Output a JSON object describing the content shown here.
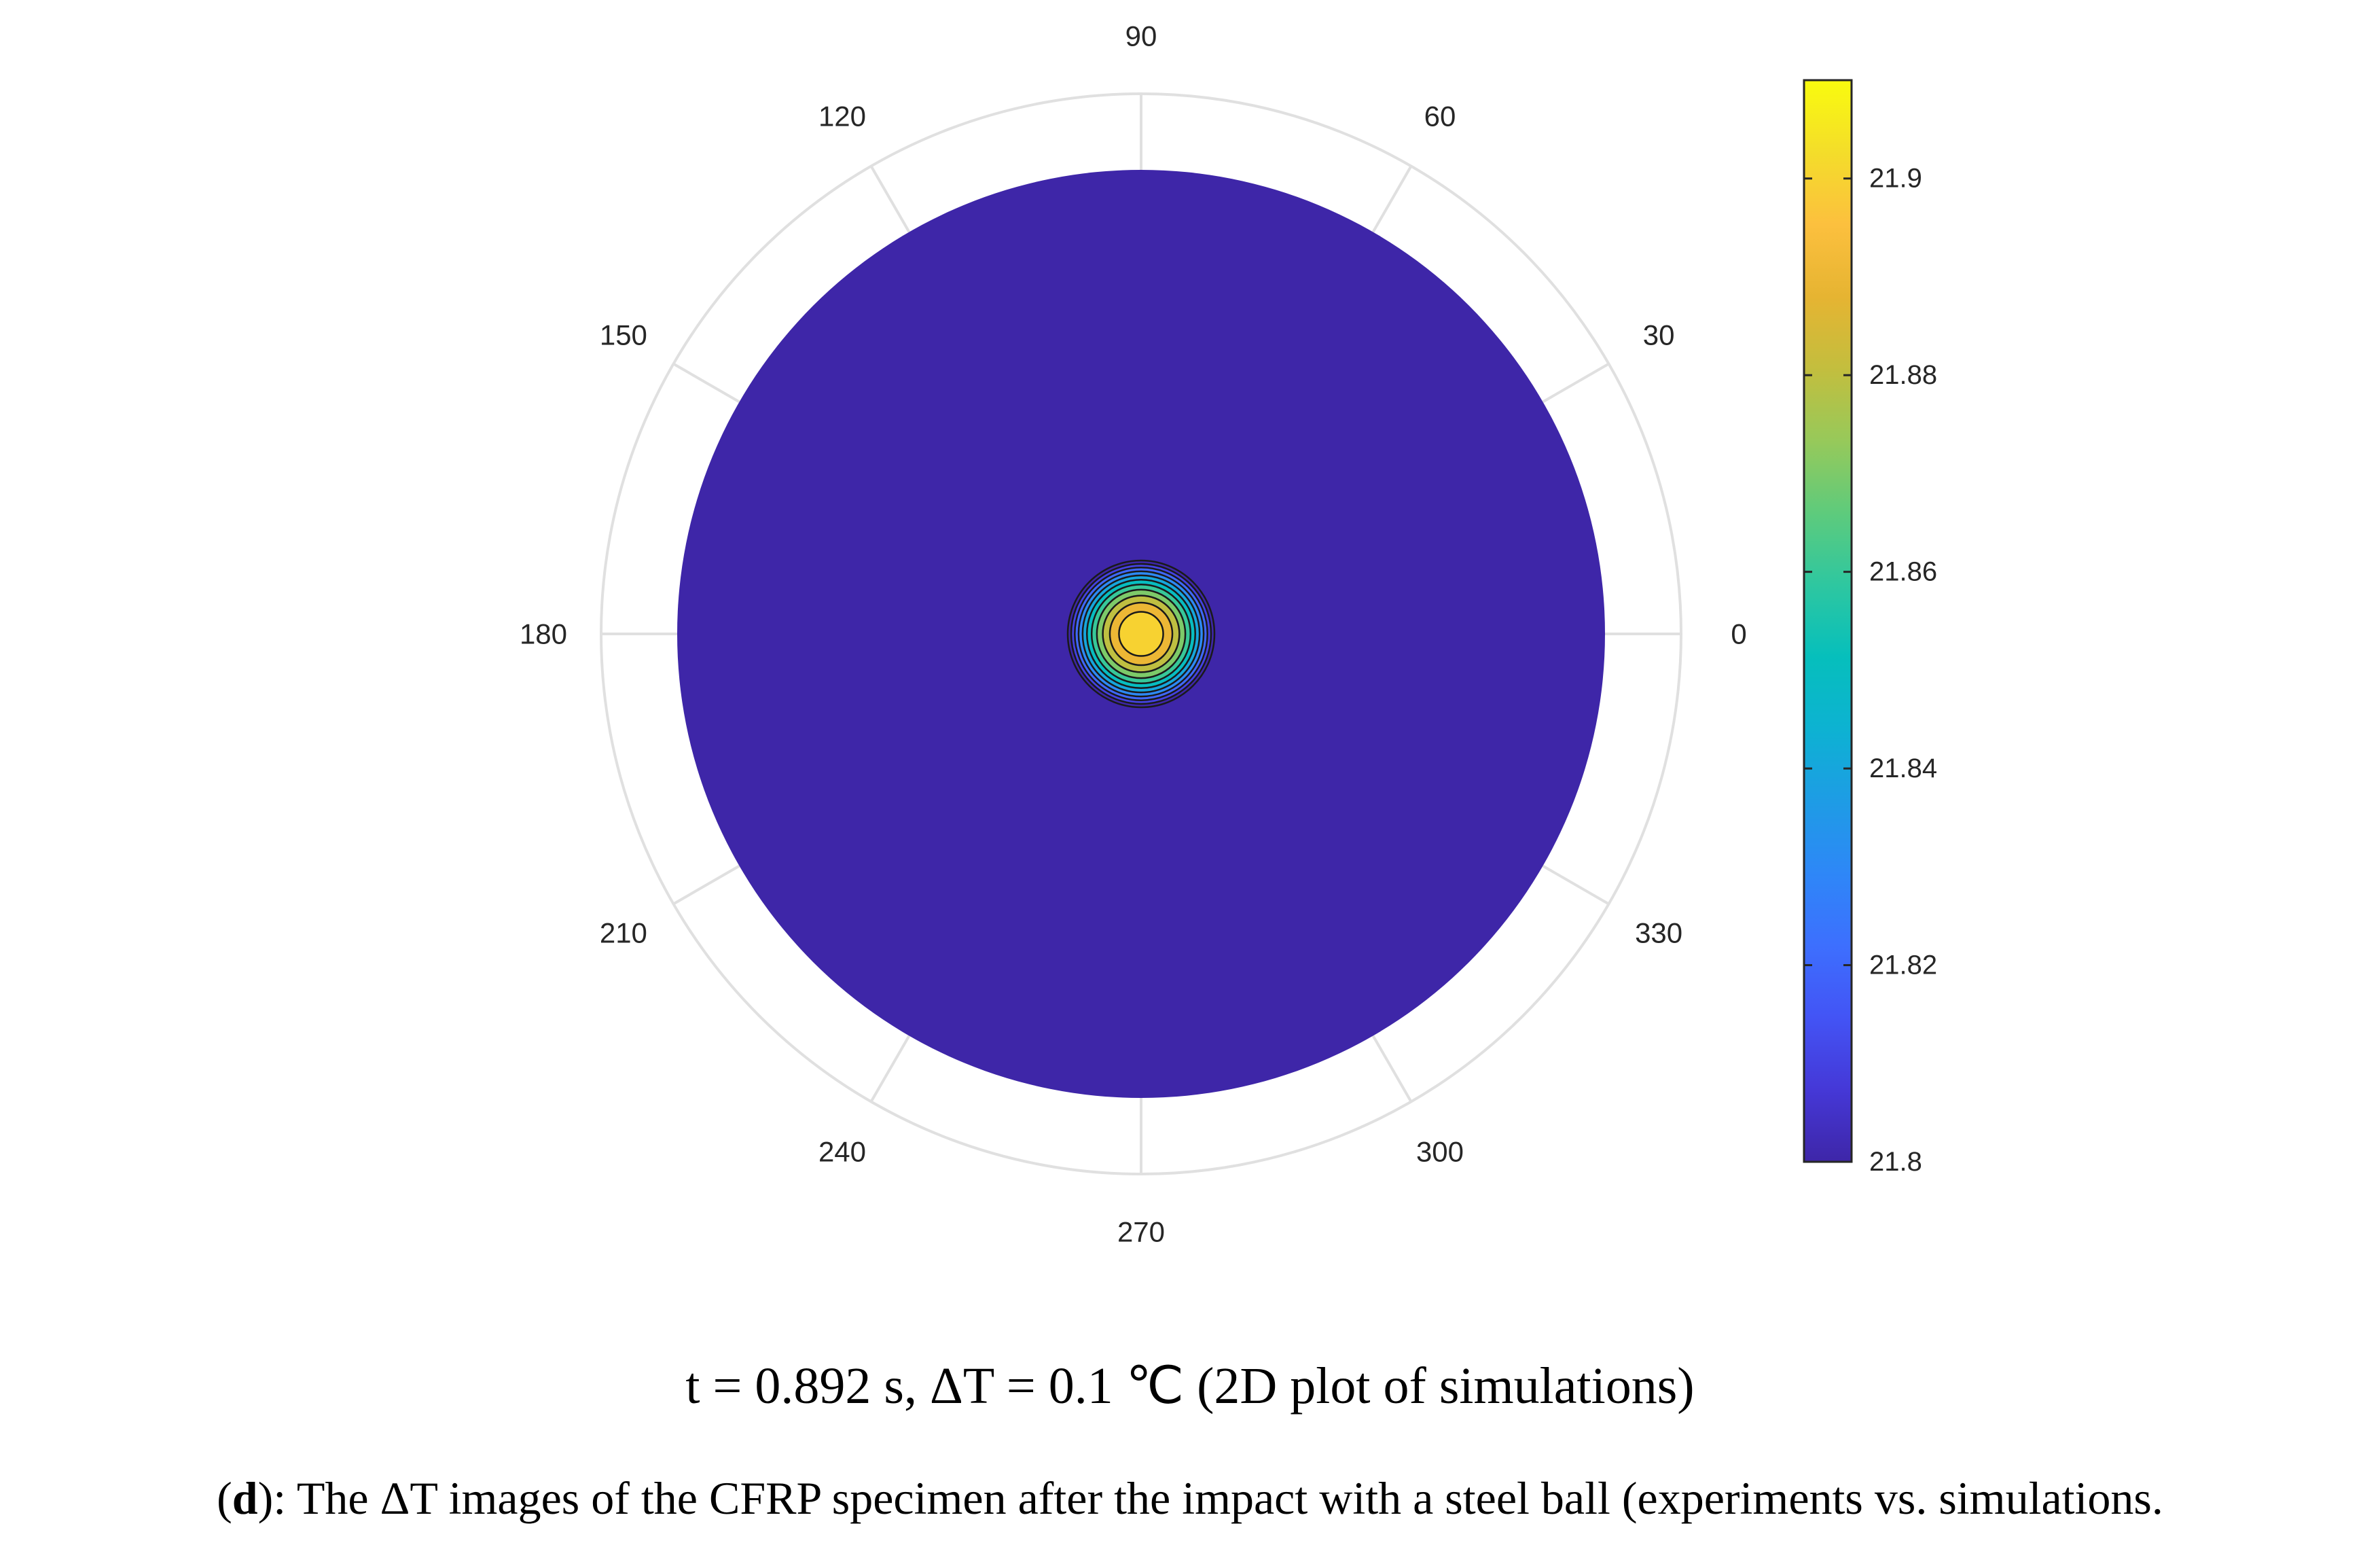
{
  "chart_data": {
    "type": "polar-contour",
    "angle_ticks": [
      "0",
      "30",
      "60",
      "90",
      "120",
      "150",
      "180",
      "210",
      "240",
      "270",
      "300",
      "330"
    ],
    "colorbar": {
      "min": 21.8,
      "max": 21.91,
      "ticks": [
        21.8,
        21.82,
        21.84,
        21.86,
        21.88,
        21.9
      ],
      "tick_labels": [
        "21.8",
        "21.82",
        "21.84",
        "21.86",
        "21.88",
        "21.9"
      ],
      "colormap": [
        "#3e26a8",
        "#4538d7",
        "#4354f5",
        "#3d6ffe",
        "#2e87f7",
        "#1e9ce5",
        "#0db2d2",
        "#06bfbc",
        "#2ec7a0",
        "#5ecb7c",
        "#97c95a",
        "#c3be3e",
        "#e6b432",
        "#fcc03e",
        "#f4dd2a",
        "#f9fb0e"
      ]
    },
    "background_value": 21.8,
    "peak_value": 21.91,
    "contour_levels": [
      21.81,
      21.82,
      21.83,
      21.84,
      21.85,
      21.86,
      21.87,
      21.88,
      21.89,
      21.9
    ]
  },
  "subtitle": "t = 0.892 s, ΔT = 0.1 ℃  (2D plot of simulations)",
  "caption": {
    "letter": "d",
    "text": "): The ΔT images of the CFRP specimen after the impact with a steel ball (experiments vs. simulations."
  },
  "colors": {
    "grid": "#e0e0e0",
    "field": "#3e26a8",
    "contour_line": "#1a1a1a"
  }
}
